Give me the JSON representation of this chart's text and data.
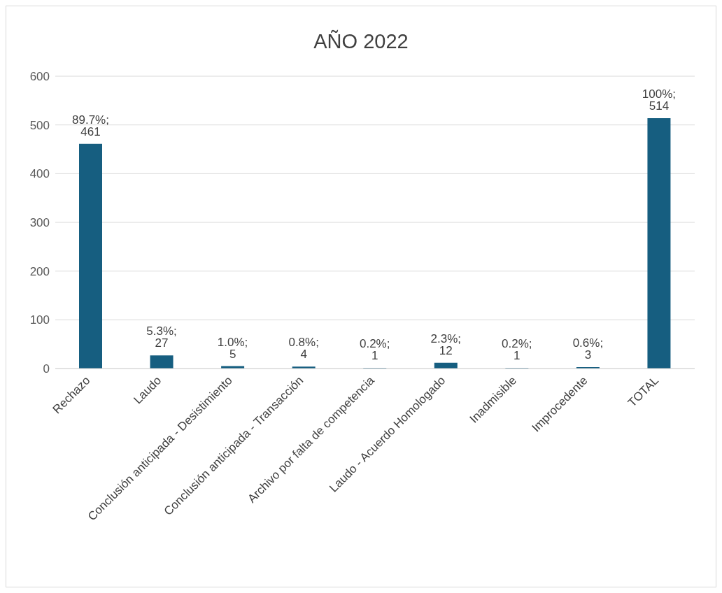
{
  "chart_data": {
    "type": "bar",
    "title": "AÑO 2022",
    "categories": [
      "Rechazo",
      "Laudo",
      "Conclusión anticipada - Desistimiento",
      "Conclusión anticipada - Transacción",
      "Archivo por falta de competencia",
      "Laudo - Acuerdo Homologado",
      "Inadmisible",
      "Improcedente",
      "TOTAL"
    ],
    "values": [
      461,
      27,
      5,
      4,
      1,
      12,
      1,
      3,
      514
    ],
    "value_labels": [
      "89.7%; 461",
      "5.3%; 27",
      "1.0%; 5",
      "0.8%; 4",
      "0.2%; 1",
      "2.3%; 12",
      "0.2%; 1",
      "0.6%; 3",
      "100%; 514"
    ],
    "color": "#165e80",
    "ylim": [
      0,
      600
    ],
    "yticks": [
      0,
      100,
      200,
      300,
      400,
      500,
      600
    ],
    "grid": "y",
    "legend": false
  }
}
